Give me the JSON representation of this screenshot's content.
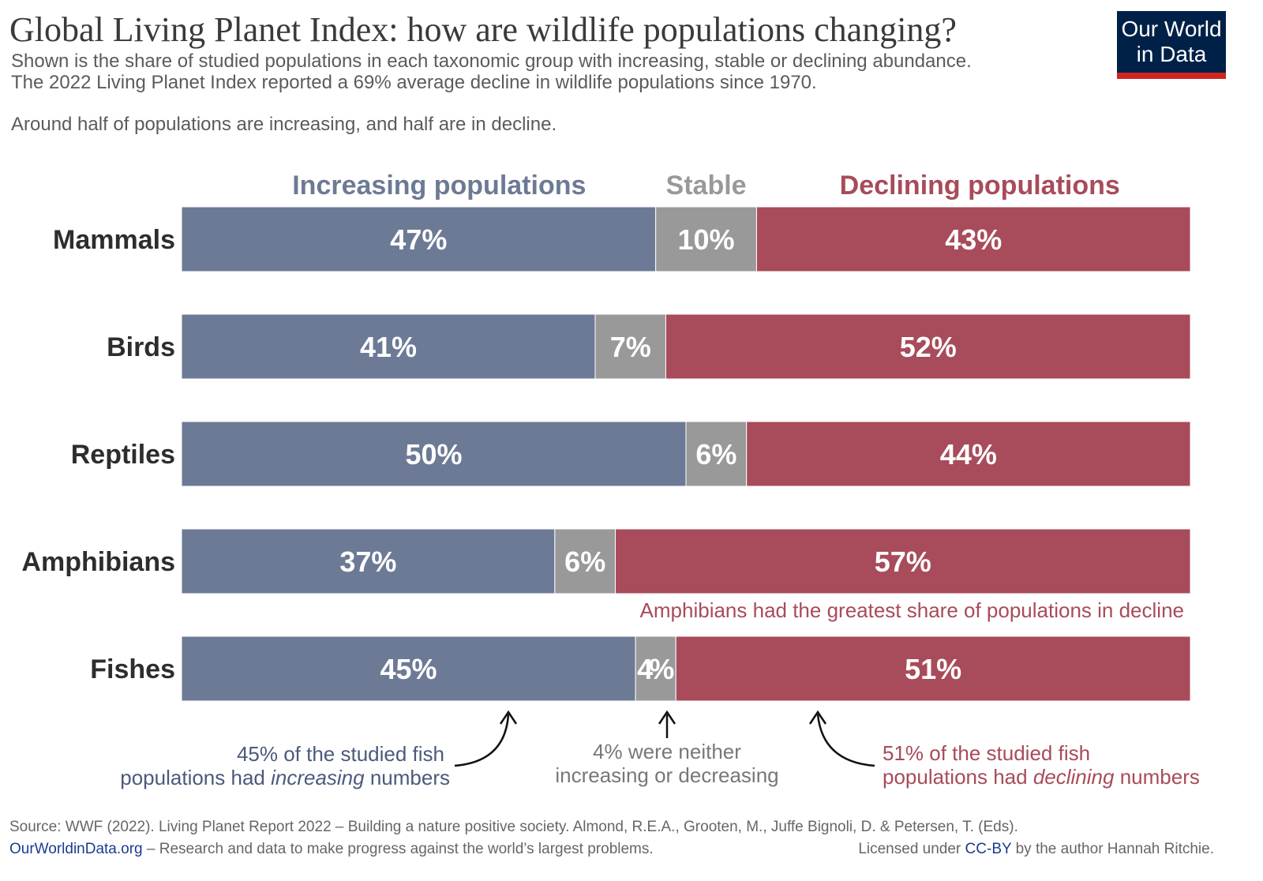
{
  "chart_data": {
    "type": "bar",
    "orientation": "horizontal",
    "stacked": true,
    "title": "Global Living Planet Index: how are wildlife populations changing?",
    "subtitle": [
      "Shown is the share of studied populations in each taxonomic group with increasing, stable or declining abundance.",
      "The 2022 Living Planet Index reported a 69% average decline in wildlife populations since 1970."
    ],
    "note": "Around half of populations are increasing, and half are in decline.",
    "categories": [
      "Mammals",
      "Birds",
      "Reptiles",
      "Amphibians",
      "Fishes"
    ],
    "series": [
      {
        "name": "Increasing populations",
        "color": "#6d7a95",
        "values": [
          47,
          41,
          50,
          37,
          45
        ],
        "value_labels": [
          "47%",
          "41%",
          "50%",
          "37%",
          "45%"
        ]
      },
      {
        "name": "Stable",
        "color": "#999999",
        "values": [
          10,
          7,
          6,
          6,
          4
        ],
        "value_labels": [
          "10%",
          "7%",
          "6%",
          "6%",
          "4%"
        ]
      },
      {
        "name": "Declining populations",
        "color": "#a84b5a",
        "values": [
          43,
          52,
          44,
          57,
          51
        ],
        "value_labels": [
          "43%",
          "52%",
          "44%",
          "57%",
          "51%"
        ]
      }
    ],
    "annotations": [
      {
        "text": "Amphibians had the greatest share of populations in decline"
      },
      {
        "lines": [
          [
            "45% of the studied fish"
          ],
          [
            "populations had ",
            "increasing",
            " numbers"
          ]
        ]
      },
      {
        "lines": [
          [
            "4% were neither"
          ],
          [
            "increasing or decreasing"
          ]
        ]
      },
      {
        "lines": [
          [
            "51% of the studied fish"
          ],
          [
            "populations had ",
            "declining",
            " numbers"
          ]
        ]
      }
    ]
  },
  "logo": [
    "Our World",
    "in Data"
  ],
  "footer": {
    "source": "Source: WWF (2022). Living Planet Report 2022 – Building a nature positive society. Almond, R.E.A., Grooten, M., Juffe Bignoli, D. & Petersen, T. (Eds).",
    "site": "OurWorldinData.org",
    "tagline": " – Research and data to make progress against the world’s largest problems.",
    "license": [
      "Licensed under ",
      "CC-BY",
      " by the author Hannah Ritchie."
    ]
  }
}
